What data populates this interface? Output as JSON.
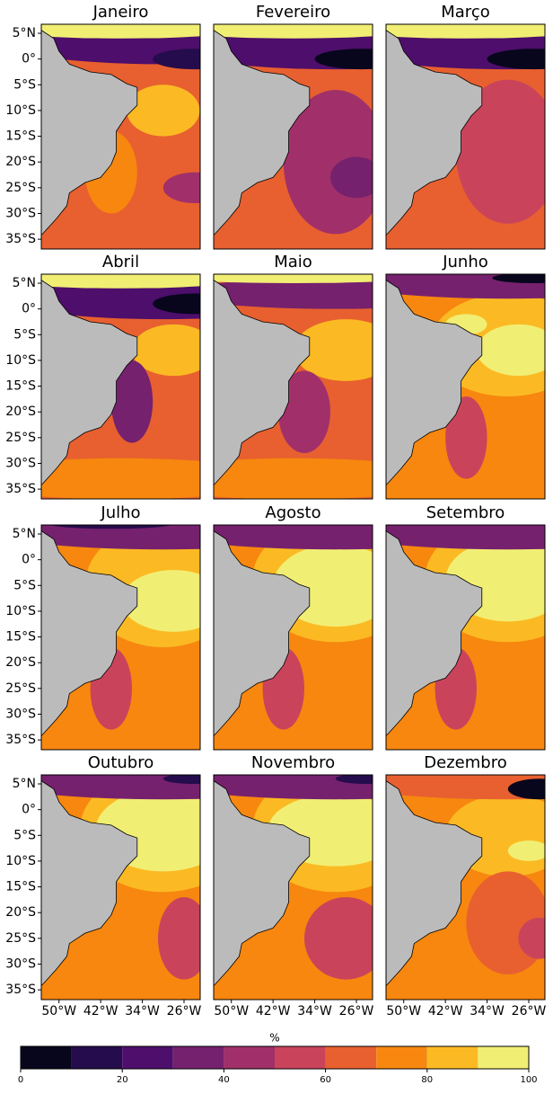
{
  "panels": [
    {
      "title": "Janeiro"
    },
    {
      "title": "Fevereiro"
    },
    {
      "title": "Março"
    },
    {
      "title": "Abril"
    },
    {
      "title": "Maio"
    },
    {
      "title": "Junho"
    },
    {
      "title": "Julho"
    },
    {
      "title": "Agosto"
    },
    {
      "title": "Setembro"
    },
    {
      "title": "Outubro"
    },
    {
      "title": "Novembro"
    },
    {
      "title": "Dezembro"
    }
  ],
  "xlim": [
    -53.4,
    -22.9
  ],
  "ylim": [
    -36.9,
    6.75
  ],
  "lat_ticks": [
    {
      "value": 5,
      "label": "5°N"
    },
    {
      "value": 0,
      "label": "0°"
    },
    {
      "value": -5,
      "label": "5°S"
    },
    {
      "value": -10,
      "label": "10°S"
    },
    {
      "value": -15,
      "label": "15°S"
    },
    {
      "value": -20,
      "label": "20°S"
    },
    {
      "value": -25,
      "label": "25°S"
    },
    {
      "value": -30,
      "label": "30°S"
    },
    {
      "value": -35,
      "label": "35°S"
    }
  ],
  "lon_ticks": [
    {
      "value": -50,
      "label": "50°W"
    },
    {
      "value": -42,
      "label": "42°W"
    },
    {
      "value": -34,
      "label": "34°W"
    },
    {
      "value": -26,
      "label": "26°W"
    }
  ],
  "colorbar": {
    "label": "%",
    "levels": [
      0,
      10,
      20,
      30,
      40,
      50,
      60,
      70,
      80,
      90,
      100
    ],
    "colors": [
      "#07061d",
      "#250c4c",
      "#4e0e6b",
      "#76216e",
      "#a1306a",
      "#c9445b",
      "#e8602f",
      "#f7870f",
      "#fbba23",
      "#f1ee74"
    ],
    "ticks": [
      0,
      20,
      40,
      60,
      80,
      100
    ]
  }
}
